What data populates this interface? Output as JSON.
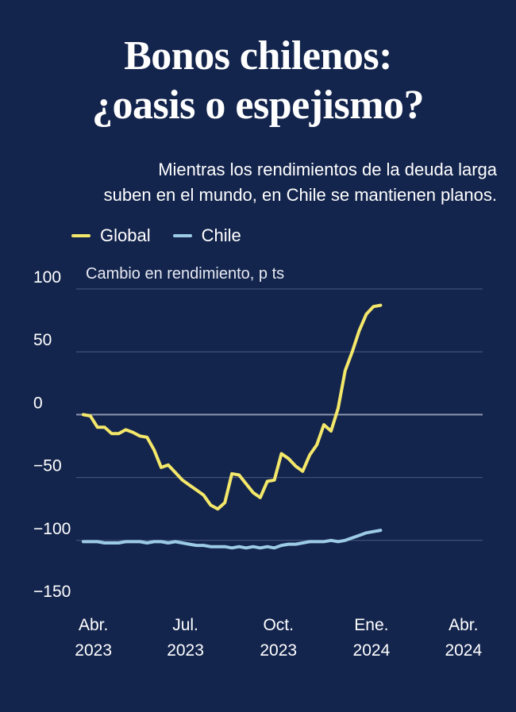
{
  "title_line1": "Bonos chilenos:",
  "title_line2": "¿oasis o espejismo?",
  "subtitle_line1": "Mientras los rendimientos de la deuda larga",
  "subtitle_line2": "suben en el mundo, en Chile se mantienen planos.",
  "colors": {
    "background": "#14254d",
    "global": "#f4e86a",
    "chile": "#9ccbe6",
    "grid": "#4a5a80",
    "zero": "#8a94ad"
  },
  "chart_data": {
    "type": "line",
    "ylabel": "Cambio en rendimiento, p ts",
    "ylim": [
      -150,
      100
    ],
    "yticks": [
      {
        "value": 100,
        "label": "100"
      },
      {
        "value": 50,
        "label": "50"
      },
      {
        "value": 0,
        "label": "0"
      },
      {
        "value": -50,
        "label": "−50"
      },
      {
        "value": -100,
        "label": "−100"
      },
      {
        "value": -150,
        "label": "−150"
      }
    ],
    "xlim": [
      "2023-03-15",
      "2024-04-20"
    ],
    "xticks": [
      {
        "date": "2023-04-01",
        "line1": "Abr.",
        "line2": "2023"
      },
      {
        "date": "2023-07-01",
        "line1": "Jul.",
        "line2": "2023"
      },
      {
        "date": "2023-10-01",
        "line1": "Oct.",
        "line2": "2023"
      },
      {
        "date": "2024-01-01",
        "line1": "Ene.",
        "line2": "2024"
      },
      {
        "date": "2024-04-01",
        "line1": "Abr.",
        "line2": "2024"
      }
    ],
    "grid": true,
    "legend_position": "top-left",
    "series": [
      {
        "name": "Global",
        "color": "#f4e86a",
        "points": [
          [
            "2023-03-22",
            0
          ],
          [
            "2023-03-29",
            -1
          ],
          [
            "2023-04-05",
            -10
          ],
          [
            "2023-04-12",
            -10
          ],
          [
            "2023-04-19",
            -15
          ],
          [
            "2023-04-26",
            -15
          ],
          [
            "2023-05-03",
            -12
          ],
          [
            "2023-05-10",
            -14
          ],
          [
            "2023-05-17",
            -17
          ],
          [
            "2023-05-24",
            -18
          ],
          [
            "2023-05-31",
            -28
          ],
          [
            "2023-06-07",
            -42
          ],
          [
            "2023-06-14",
            -40
          ],
          [
            "2023-06-21",
            -46
          ],
          [
            "2023-06-28",
            -52
          ],
          [
            "2023-07-05",
            -56
          ],
          [
            "2023-07-12",
            -60
          ],
          [
            "2023-07-19",
            -64
          ],
          [
            "2023-07-26",
            -72
          ],
          [
            "2023-08-02",
            -75
          ],
          [
            "2023-08-09",
            -70
          ],
          [
            "2023-08-16",
            -47
          ],
          [
            "2023-08-23",
            -48
          ],
          [
            "2023-08-30",
            -55
          ],
          [
            "2023-09-06",
            -62
          ],
          [
            "2023-09-13",
            -66
          ],
          [
            "2023-09-20",
            -53
          ],
          [
            "2023-09-27",
            -52
          ],
          [
            "2023-10-04",
            -31
          ],
          [
            "2023-10-11",
            -35
          ],
          [
            "2023-10-18",
            -41
          ],
          [
            "2023-10-25",
            -45
          ],
          [
            "2023-11-01",
            -32
          ],
          [
            "2023-11-08",
            -24
          ],
          [
            "2023-11-15",
            -8
          ],
          [
            "2023-11-22",
            -13
          ],
          [
            "2023-11-29",
            5
          ],
          [
            "2023-12-06",
            35
          ],
          [
            "2023-12-13",
            50
          ],
          [
            "2023-12-20",
            67
          ],
          [
            "2023-12-27",
            80
          ],
          [
            "2024-01-03",
            86
          ],
          [
            "2024-01-10",
            87
          ]
        ]
      },
      {
        "name": "Chile",
        "color": "#9ccbe6",
        "points": [
          [
            "2023-03-22",
            -101
          ],
          [
            "2023-03-29",
            -101
          ],
          [
            "2023-04-05",
            -101
          ],
          [
            "2023-04-12",
            -102
          ],
          [
            "2023-04-19",
            -102
          ],
          [
            "2023-04-26",
            -102
          ],
          [
            "2023-05-03",
            -101
          ],
          [
            "2023-05-10",
            -101
          ],
          [
            "2023-05-17",
            -101
          ],
          [
            "2023-05-24",
            -102
          ],
          [
            "2023-05-31",
            -101
          ],
          [
            "2023-06-07",
            -101
          ],
          [
            "2023-06-14",
            -102
          ],
          [
            "2023-06-21",
            -101
          ],
          [
            "2023-06-28",
            -102
          ],
          [
            "2023-07-05",
            -103
          ],
          [
            "2023-07-12",
            -104
          ],
          [
            "2023-07-19",
            -104
          ],
          [
            "2023-07-26",
            -105
          ],
          [
            "2023-08-02",
            -105
          ],
          [
            "2023-08-09",
            -105
          ],
          [
            "2023-08-16",
            -106
          ],
          [
            "2023-08-23",
            -105
          ],
          [
            "2023-08-30",
            -106
          ],
          [
            "2023-09-06",
            -105
          ],
          [
            "2023-09-13",
            -106
          ],
          [
            "2023-09-20",
            -105
          ],
          [
            "2023-09-27",
            -106
          ],
          [
            "2023-10-04",
            -104
          ],
          [
            "2023-10-11",
            -103
          ],
          [
            "2023-10-18",
            -103
          ],
          [
            "2023-10-25",
            -102
          ],
          [
            "2023-11-01",
            -101
          ],
          [
            "2023-11-08",
            -101
          ],
          [
            "2023-11-15",
            -101
          ],
          [
            "2023-11-22",
            -100
          ],
          [
            "2023-11-29",
            -101
          ],
          [
            "2023-12-06",
            -100
          ],
          [
            "2023-12-13",
            -98
          ],
          [
            "2023-12-20",
            -96
          ],
          [
            "2023-12-27",
            -94
          ],
          [
            "2024-01-03",
            -93
          ],
          [
            "2024-01-10",
            -92
          ]
        ]
      }
    ]
  }
}
